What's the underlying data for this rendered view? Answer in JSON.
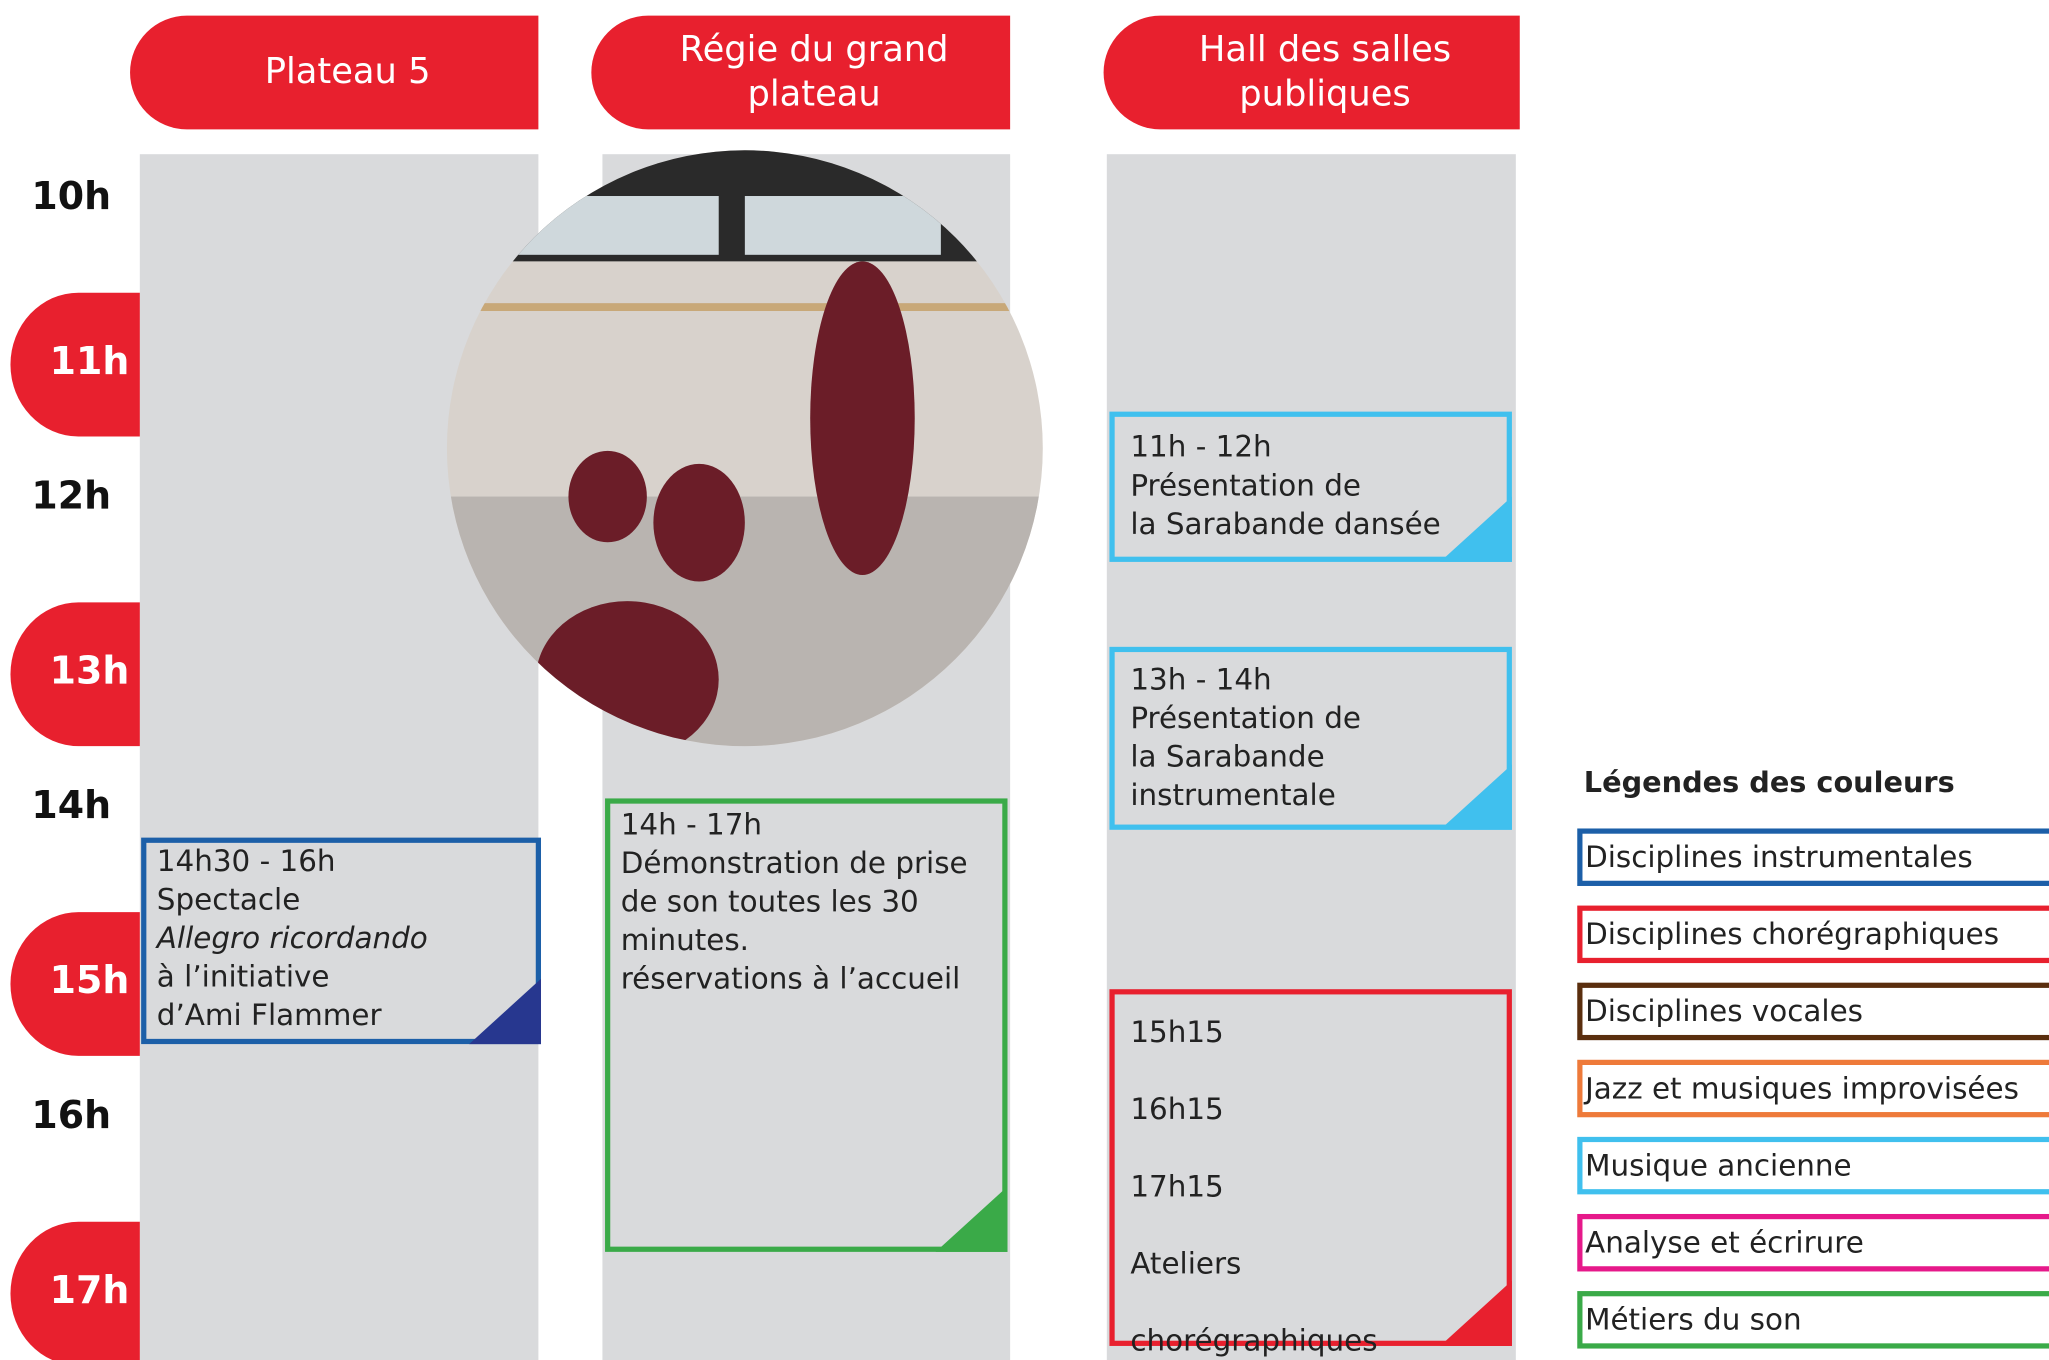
{
  "columns": [
    {
      "title": [
        "Plateau 5"
      ],
      "events": [
        {
          "color": "#1c5fa8",
          "corner": "#27378f",
          "lines": [
            "14h30 - 16h",
            "Spectacle",
            {
              "text": "Allegro ricordando",
              "italic": true
            },
            "à l’initiative",
            "d’Ami Flammer"
          ]
        }
      ]
    },
    {
      "title": [
        "Régie du grand",
        "plateau"
      ],
      "events": [
        {
          "color": "#3aaa48",
          "corner": "#3aaa48",
          "lines": [
            "14h - 17h",
            "Démonstration de prise",
            "de son toutes les 30",
            "minutes.",
            "réservations à l’accueil"
          ]
        }
      ]
    },
    {
      "title": [
        "Hall des salles",
        "publiques"
      ],
      "events": [
        {
          "color": "#40c0ee",
          "corner": "#40c0ee",
          "lines": [
            "11h - 12h",
            "Présentation de",
            "la Sarabande dansée"
          ]
        },
        {
          "color": "#40c0ee",
          "corner": "#40c0ee",
          "lines": [
            "13h - 14h",
            "Présentation de",
            "la Sarabande",
            "instrumentale"
          ]
        },
        {
          "color": "#e8202e",
          "corner": "#e8202e",
          "lines": [
            "15h15",
            "16h15",
            "17h15",
            "Ateliers",
            "chorégraphiques"
          ]
        }
      ]
    }
  ],
  "hours": [
    "10h",
    "11h",
    "12h",
    "13h",
    "14h",
    "15h",
    "16h",
    "17h"
  ],
  "legend": {
    "title": "Légendes des couleurs",
    "items": [
      {
        "label": "Disciplines instrumentales",
        "color": "#1c5fa8"
      },
      {
        "label": "Disciplines chorégraphiques",
        "color": "#e8202e"
      },
      {
        "label": "Disciplines vocales",
        "color": "#5a2e0e"
      },
      {
        "label": "Jazz et musiques improvisées",
        "color": "#ee7a3a"
      },
      {
        "label": "Musique ancienne",
        "color": "#40c0ee"
      },
      {
        "label": "Analyse et écrirure",
        "color": "#e6198a"
      },
      {
        "label": "Métiers du son",
        "color": "#3aaa48"
      }
    ]
  }
}
